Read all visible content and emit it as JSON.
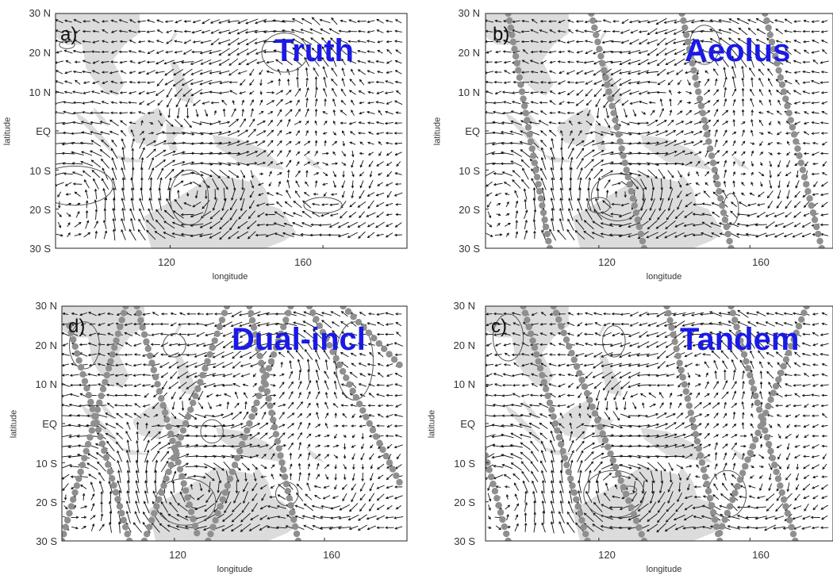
{
  "axes": {
    "ylabel": "latitude",
    "xlabel": "longitude",
    "lat_ticks": [
      "30 N",
      "20 N",
      "10 N",
      "EQ",
      "10 S",
      "20 S",
      "30 S"
    ],
    "lon_ticks": [
      "120",
      "160"
    ]
  },
  "panels": [
    {
      "id": "a",
      "label": "a)",
      "title": "Truth",
      "tracks": []
    },
    {
      "id": "b",
      "label": "b)",
      "title": "Aeolus",
      "tracks": [
        [
          [
            96,
            30
          ],
          [
            107,
            -30
          ]
        ],
        [
          [
            118,
            30
          ],
          [
            132,
            -30
          ]
        ],
        [
          [
            142,
            30
          ],
          [
            155,
            -30
          ]
        ],
        [
          [
            164,
            30
          ],
          [
            179,
            -30
          ]
        ]
      ]
    },
    {
      "id": "d",
      "label": "d)",
      "title": "Dual-incl",
      "tracks": [
        [
          [
            92,
            25
          ],
          [
            108,
            -30
          ]
        ],
        [
          [
            90,
            -30
          ],
          [
            107,
            30
          ]
        ],
        [
          [
            110,
            30
          ],
          [
            126,
            -28
          ]
        ],
        [
          [
            112,
            -30
          ],
          [
            134,
            30
          ]
        ],
        [
          [
            129,
            -30
          ],
          [
            151,
            30
          ]
        ],
        [
          [
            140,
            30
          ],
          [
            153,
            -30
          ]
        ],
        [
          [
            156,
            30
          ],
          [
            180,
            -15
          ]
        ],
        [
          [
            165,
            30
          ],
          [
            180,
            15
          ]
        ]
      ]
    },
    {
      "id": "c",
      "label": "c)",
      "title": "Tandem",
      "tracks": [
        [
          [
            85,
            10
          ],
          [
            96,
            -30
          ]
        ],
        [
          [
            100,
            30
          ],
          [
            117,
            -30
          ]
        ],
        [
          [
            108,
            30
          ],
          [
            132,
            -30
          ]
        ],
        [
          [
            138,
            30
          ],
          [
            152,
            -30
          ]
        ],
        [
          [
            155,
            30
          ],
          [
            172,
            -30
          ]
        ],
        [
          [
            175,
            30
          ],
          [
            152,
            -28
          ]
        ]
      ]
    }
  ],
  "colors": {
    "land": "#dcdcdc",
    "track": "#8f8f8f",
    "title": "#1a1ae6",
    "arrow": "#111111",
    "contour": "#555555"
  }
}
